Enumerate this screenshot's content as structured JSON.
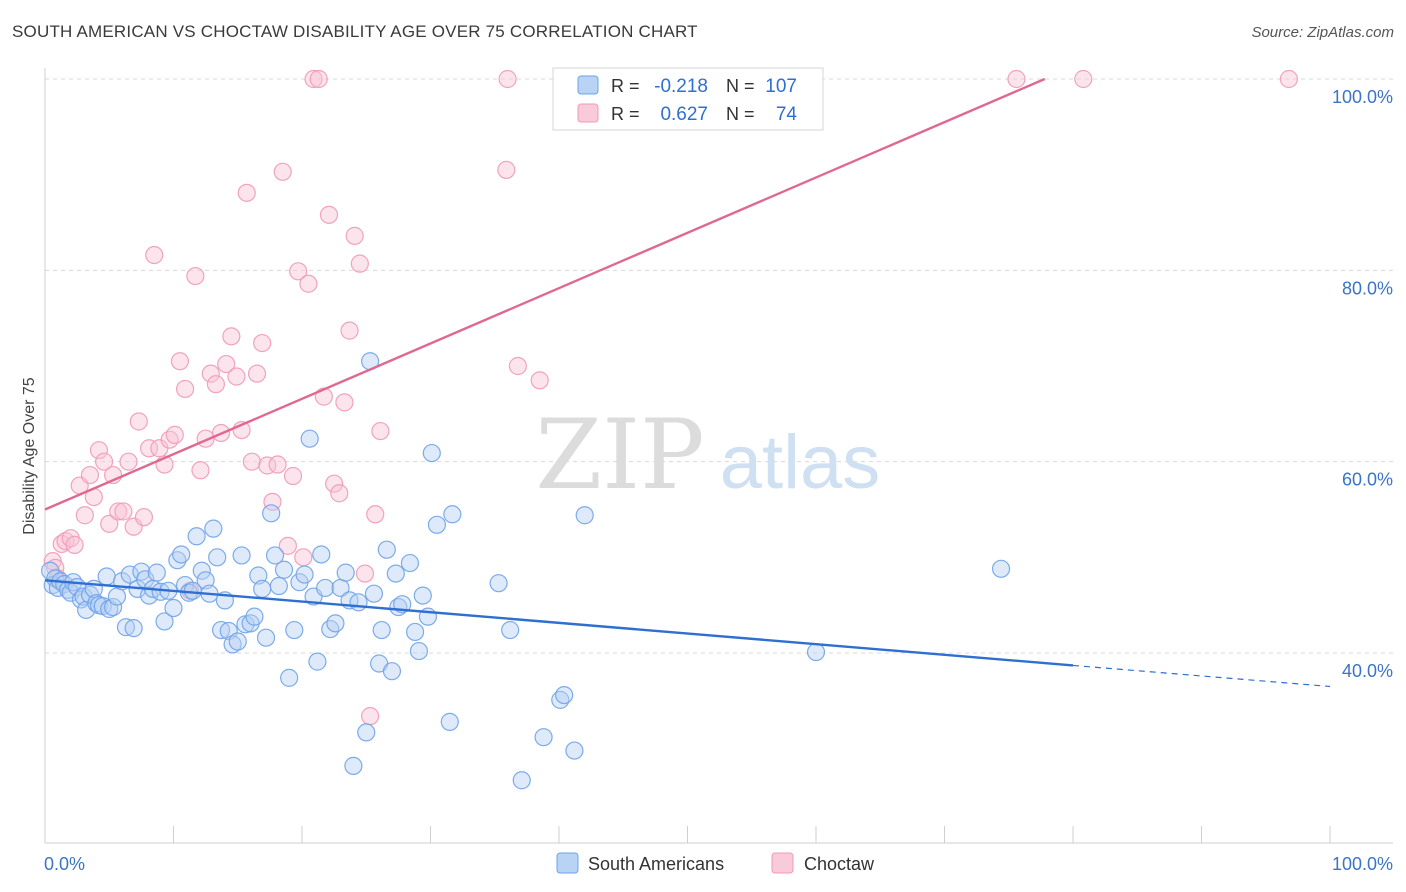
{
  "header": {
    "title": "SOUTH AMERICAN VS CHOCTAW DISABILITY AGE OVER 75 CORRELATION CHART",
    "source": "Source: ZipAtlas.com"
  },
  "watermark": {
    "part1": "ZIP",
    "part2": "atlas"
  },
  "legend_stats": {
    "r_label": "R =",
    "n_label": "N =",
    "rows": [
      {
        "r": "-0.218",
        "n": "107",
        "color": "#6fa3e8"
      },
      {
        "r": "0.627",
        "n": "74",
        "color": "#f09ab6"
      }
    ]
  },
  "bottom_legend": [
    {
      "label": "South Americans",
      "color": "#6fa3e8"
    },
    {
      "label": "Choctaw",
      "color": "#f09ab6"
    }
  ],
  "colors": {
    "blue_point": "#6fa3e8",
    "pink_point": "#f09ab6",
    "blue_line": "#2e6fd0",
    "pink_line": "#e0688f",
    "tick_text": "#3a74c8"
  },
  "chart_data": {
    "type": "scatter",
    "title": "SOUTH AMERICAN VS CHOCTAW DISABILITY AGE OVER 75 CORRELATION CHART",
    "xlabel": "",
    "ylabel": "Disability Age Over 75",
    "xlim": [
      0,
      100
    ],
    "ylim": [
      20,
      102
    ],
    "x_tick_labels": [
      "0.0%",
      "100.0%"
    ],
    "y_ticks": [
      {
        "value": 40,
        "label": "40.0%"
      },
      {
        "value": 60,
        "label": "60.0%"
      },
      {
        "value": 80,
        "label": "80.0%"
      },
      {
        "value": 100,
        "label": "100.0%"
      }
    ],
    "grid": true,
    "legend_position": "top-center",
    "series": [
      {
        "name": "South Americans",
        "color": "#6fa3e8",
        "r": -0.218,
        "n": 107,
        "trend": {
          "x0": 0,
          "y0": 47.6,
          "x1": 80,
          "y1": 38.7,
          "dash_to_x": 100,
          "dash_to_y": 36.5
        },
        "points": [
          [
            0.4,
            48.6
          ],
          [
            0.6,
            47.1
          ],
          [
            0.8,
            47.8
          ],
          [
            1,
            46.8
          ],
          [
            1.2,
            47.5
          ],
          [
            1.5,
            47.2
          ],
          [
            1.8,
            46.6
          ],
          [
            2,
            46.3
          ],
          [
            2.2,
            47.4
          ],
          [
            2.5,
            46.9
          ],
          [
            2.8,
            45.6
          ],
          [
            3,
            45.9
          ],
          [
            3.2,
            44.5
          ],
          [
            3.5,
            46.1
          ],
          [
            3.8,
            46.7
          ],
          [
            4,
            45.2
          ],
          [
            4.2,
            45.0
          ],
          [
            4.5,
            44.9
          ],
          [
            4.8,
            48.0
          ],
          [
            5,
            44.6
          ],
          [
            5.3,
            44.8
          ],
          [
            5.6,
            45.9
          ],
          [
            6,
            47.5
          ],
          [
            6.3,
            42.7
          ],
          [
            6.6,
            48.2
          ],
          [
            6.9,
            42.6
          ],
          [
            7.2,
            46.7
          ],
          [
            7.5,
            48.5
          ],
          [
            7.8,
            47.7
          ],
          [
            8.1,
            46.0
          ],
          [
            8.4,
            46.7
          ],
          [
            8.7,
            48.4
          ],
          [
            9,
            46.4
          ],
          [
            9.3,
            43.3
          ],
          [
            9.6,
            46.5
          ],
          [
            10,
            44.7
          ],
          [
            10.3,
            49.7
          ],
          [
            10.6,
            50.3
          ],
          [
            10.9,
            47.1
          ],
          [
            11.2,
            46.3
          ],
          [
            11.5,
            46.5
          ],
          [
            11.8,
            52.2
          ],
          [
            12.2,
            48.6
          ],
          [
            12.5,
            47.6
          ],
          [
            12.8,
            46.2
          ],
          [
            13.1,
            53.0
          ],
          [
            13.4,
            50.0
          ],
          [
            13.7,
            42.4
          ],
          [
            14,
            45.5
          ],
          [
            14.3,
            42.3
          ],
          [
            14.6,
            40.9
          ],
          [
            15,
            41.2
          ],
          [
            15.3,
            50.2
          ],
          [
            15.6,
            43.0
          ],
          [
            16,
            43.1
          ],
          [
            16.3,
            43.8
          ],
          [
            16.6,
            48.1
          ],
          [
            16.9,
            46.7
          ],
          [
            17.2,
            41.6
          ],
          [
            17.6,
            54.6
          ],
          [
            17.9,
            50.2
          ],
          [
            18.2,
            47.0
          ],
          [
            18.6,
            48.7
          ],
          [
            19,
            37.4
          ],
          [
            19.4,
            42.4
          ],
          [
            19.8,
            47.4
          ],
          [
            20.2,
            48.2
          ],
          [
            20.6,
            62.4
          ],
          [
            20.9,
            45.9
          ],
          [
            21.2,
            39.1
          ],
          [
            21.5,
            50.3
          ],
          [
            21.8,
            46.8
          ],
          [
            22.2,
            42.5
          ],
          [
            22.6,
            43.1
          ],
          [
            23,
            46.8
          ],
          [
            23.4,
            48.4
          ],
          [
            23.7,
            45.5
          ],
          [
            24,
            28.2
          ],
          [
            24.4,
            45.3
          ],
          [
            25,
            31.7
          ],
          [
            25.3,
            70.5
          ],
          [
            25.6,
            46.2
          ],
          [
            26,
            38.9
          ],
          [
            26.2,
            42.4
          ],
          [
            26.6,
            50.8
          ],
          [
            27,
            38.1
          ],
          [
            27.3,
            48.3
          ],
          [
            27.5,
            44.8
          ],
          [
            27.8,
            45.1
          ],
          [
            28.4,
            49.4
          ],
          [
            28.8,
            42.2
          ],
          [
            29.1,
            40.2
          ],
          [
            29.4,
            46.0
          ],
          [
            29.8,
            43.8
          ],
          [
            30.1,
            60.9
          ],
          [
            30.5,
            53.4
          ],
          [
            31.5,
            32.8
          ],
          [
            31.7,
            54.5
          ],
          [
            35.3,
            47.3
          ],
          [
            36.2,
            42.4
          ],
          [
            37.1,
            26.7
          ],
          [
            38.8,
            31.2
          ],
          [
            40.1,
            35.1
          ],
          [
            40.4,
            35.6
          ],
          [
            41.2,
            29.8
          ],
          [
            42,
            54.4
          ],
          [
            60,
            40.1
          ],
          [
            74.4,
            48.8
          ]
        ]
      },
      {
        "name": "Choctaw",
        "color": "#f09ab6",
        "r": 0.627,
        "n": 74,
        "trend": {
          "x0": 0,
          "y0": 55.0,
          "x1": 77.8,
          "y1": 100
        },
        "points": [
          [
            0.6,
            49.6
          ],
          [
            0.8,
            48.9
          ],
          [
            1,
            47.8
          ],
          [
            1.3,
            51.4
          ],
          [
            1.6,
            51.7
          ],
          [
            2,
            52.0
          ],
          [
            2.3,
            51.3
          ],
          [
            2.7,
            57.5
          ],
          [
            3.1,
            54.4
          ],
          [
            3.5,
            58.6
          ],
          [
            3.8,
            56.3
          ],
          [
            4.2,
            61.2
          ],
          [
            4.6,
            60.0
          ],
          [
            5,
            53.5
          ],
          [
            5.3,
            58.6
          ],
          [
            5.7,
            54.8
          ],
          [
            6.1,
            54.8
          ],
          [
            6.5,
            60.0
          ],
          [
            6.9,
            53.2
          ],
          [
            7.3,
            64.2
          ],
          [
            7.7,
            54.2
          ],
          [
            8.1,
            61.4
          ],
          [
            8.5,
            81.6
          ],
          [
            8.9,
            61.4
          ],
          [
            9.3,
            59.7
          ],
          [
            9.7,
            62.3
          ],
          [
            10.1,
            62.8
          ],
          [
            10.5,
            70.5
          ],
          [
            10.9,
            67.6
          ],
          [
            11.3,
            46.5
          ],
          [
            11.7,
            79.4
          ],
          [
            12.1,
            59.1
          ],
          [
            12.5,
            62.4
          ],
          [
            12.9,
            69.2
          ],
          [
            13.3,
            68.1
          ],
          [
            13.7,
            63.0
          ],
          [
            14.1,
            70.2
          ],
          [
            14.5,
            73.1
          ],
          [
            14.9,
            68.9
          ],
          [
            15.3,
            63.3
          ],
          [
            15.7,
            88.1
          ],
          [
            16.1,
            60.0
          ],
          [
            16.5,
            69.2
          ],
          [
            16.9,
            72.4
          ],
          [
            17.3,
            59.6
          ],
          [
            17.7,
            55.8
          ],
          [
            18.1,
            59.7
          ],
          [
            18.5,
            90.3
          ],
          [
            18.9,
            51.2
          ],
          [
            19.3,
            58.5
          ],
          [
            19.7,
            79.9
          ],
          [
            20.1,
            50.0
          ],
          [
            20.5,
            78.6
          ],
          [
            20.9,
            100
          ],
          [
            21.3,
            100
          ],
          [
            21.7,
            66.8
          ],
          [
            22.1,
            85.8
          ],
          [
            22.5,
            57.7
          ],
          [
            22.9,
            56.7
          ],
          [
            23.3,
            66.2
          ],
          [
            23.7,
            73.7
          ],
          [
            24.1,
            83.6
          ],
          [
            24.5,
            80.7
          ],
          [
            24.9,
            48.3
          ],
          [
            25.3,
            33.4
          ],
          [
            25.7,
            54.5
          ],
          [
            26.1,
            63.2
          ],
          [
            35.9,
            90.5
          ],
          [
            36,
            100
          ],
          [
            36.8,
            70.0
          ],
          [
            38.5,
            68.5
          ],
          [
            75.6,
            100
          ],
          [
            80.8,
            100
          ],
          [
            96.8,
            100
          ]
        ]
      }
    ]
  }
}
